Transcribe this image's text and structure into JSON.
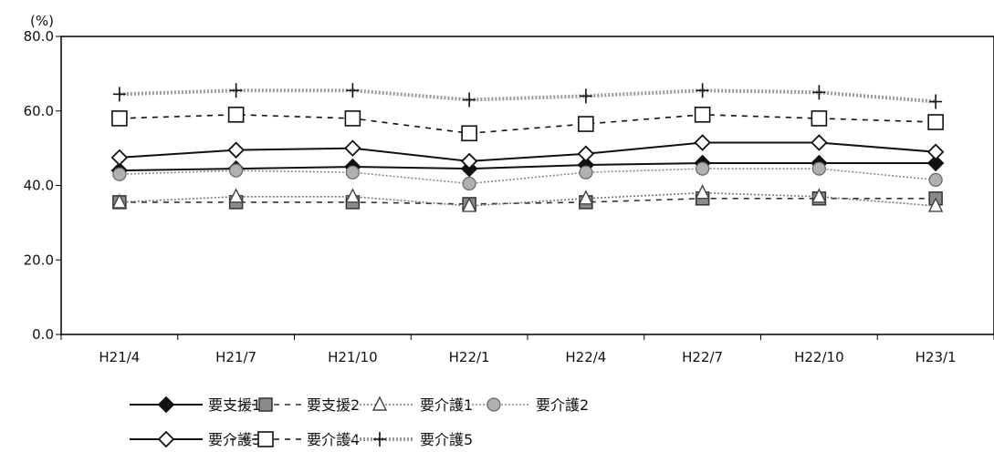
{
  "chart_data": {
    "type": "line",
    "title": "",
    "xlabel": "",
    "ylabel": "(%)",
    "ylim": [
      0,
      80
    ],
    "yticks": [
      "0.0",
      "20.0",
      "40.0",
      "60.0",
      "80.0"
    ],
    "categories": [
      "H21/4",
      "H21/7",
      "H21/10",
      "H22/1",
      "H22/4",
      "H22/7",
      "H22/10",
      "H23/1"
    ],
    "grid": false,
    "legend_position": "bottom",
    "series": [
      {
        "name": "要支援1",
        "values": [
          44,
          44.5,
          45,
          44.5,
          45.5,
          46,
          46,
          46
        ],
        "line": "solid",
        "marker": "diamond-filled",
        "color": "#111111"
      },
      {
        "name": "要支援2",
        "values": [
          35.5,
          35.5,
          35.5,
          35,
          35.5,
          36.5,
          36.5,
          36.5
        ],
        "line": "dashed",
        "marker": "square-grey",
        "color": "#333333"
      },
      {
        "name": "要介護1",
        "values": [
          35.5,
          37,
          37,
          34.5,
          36.5,
          38,
          37,
          34.5
        ],
        "line": "dotted-light",
        "marker": "triangle",
        "color": "#777777"
      },
      {
        "name": "要介護2",
        "values": [
          43,
          44,
          43.5,
          40.5,
          43.5,
          44.5,
          44.5,
          41.5
        ],
        "line": "dotted-grey",
        "marker": "circle-grey",
        "color": "#888888"
      },
      {
        "name": "要介護3",
        "values": [
          47.5,
          49.5,
          50,
          46.5,
          48.5,
          51.5,
          51.5,
          49
        ],
        "line": "solid",
        "marker": "diamond-open",
        "color": "#111111"
      },
      {
        "name": "要介護4",
        "values": [
          58,
          59,
          58,
          54,
          56.5,
          59,
          58,
          57
        ],
        "line": "dashed",
        "marker": "square-open",
        "color": "#111111"
      },
      {
        "name": "要介護5",
        "values": [
          64.5,
          65.5,
          65.5,
          63,
          64,
          65.5,
          65,
          62.5
        ],
        "line": "dotted-thick",
        "marker": "plus",
        "color": "#999999"
      }
    ]
  }
}
